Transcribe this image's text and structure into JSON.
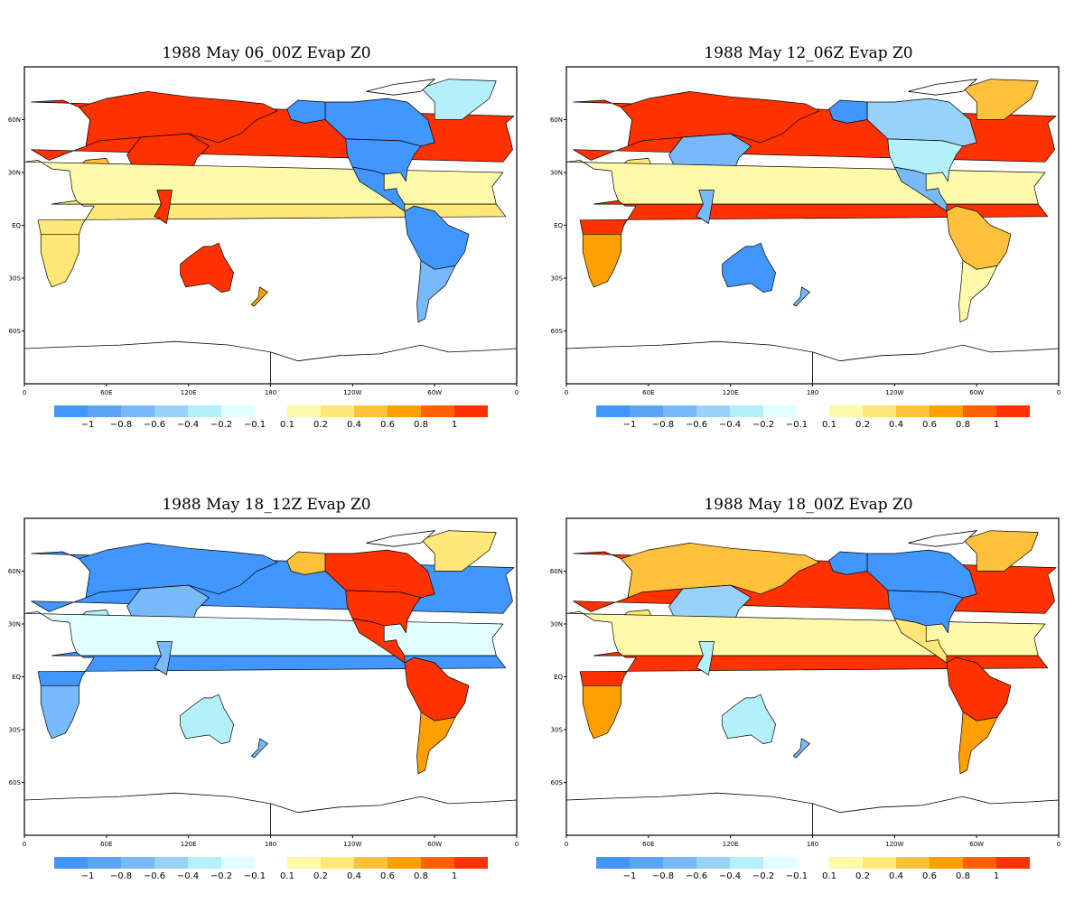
{
  "panels": [
    {
      "title": "1988 May 06_00Z Evap Z0",
      "regions": {
        "europe": "r5",
        "russia": "r5",
        "china": "r5",
        "india": "r5",
        "mideast": "r3",
        "africa_n": "r1",
        "africa_c": "r2",
        "africa_s": "r2",
        "australia": "r5",
        "seasia": "r5",
        "alaska": "b5",
        "canada": "b5",
        "greenland": "b2",
        "usa": "b5",
        "mexico": "b5",
        "samerica_n": "b5",
        "samerica_s": "b4",
        "nz": "r4"
      }
    },
    {
      "title": "1988 May 12_06Z Evap Z0",
      "regions": {
        "europe": "r5",
        "russia": "r5",
        "china": "b4",
        "india": "r5",
        "mideast": "r2",
        "africa_n": "r1",
        "africa_c": "r5",
        "africa_s": "r4",
        "australia": "b5",
        "seasia": "b4",
        "alaska": "b5",
        "canada": "b3",
        "greenland": "r3",
        "usa": "b2",
        "mexico": "b4",
        "samerica_n": "r3",
        "samerica_s": "r1",
        "nz": "b4"
      }
    },
    {
      "title": "1988 May 18_12Z Evap Z0",
      "regions": {
        "europe": "b5",
        "russia": "b5",
        "china": "b4",
        "india": "b4",
        "mideast": "b2",
        "africa_n": "b1",
        "africa_c": "b5",
        "africa_s": "b4",
        "australia": "b2",
        "seasia": "b4",
        "alaska": "r3",
        "canada": "r5",
        "greenland": "r2",
        "usa": "r5",
        "mexico": "r5",
        "samerica_n": "r5",
        "samerica_s": "r4",
        "nz": "b4"
      }
    },
    {
      "title": "1988 May 18_00Z Evap Z0",
      "regions": {
        "europe": "r5",
        "russia": "r3",
        "china": "b3",
        "india": "r3",
        "mideast": "r2",
        "africa_n": "r1",
        "africa_c": "r5",
        "africa_s": "r4",
        "australia": "b2",
        "seasia": "b2",
        "alaska": "b5",
        "canada": "b5",
        "greenland": "r3",
        "usa": "b5",
        "mexico": "r2",
        "samerica_n": "r5",
        "samerica_s": "r4",
        "nz": "b4"
      }
    }
  ],
  "x_ticks": [
    "0",
    "60E",
    "120E",
    "180",
    "120W",
    "60W",
    "0"
  ],
  "y_ticks": [
    "60N",
    "30N",
    "EQ",
    "30S",
    "60S"
  ],
  "colorbar": {
    "negative_labels": [
      "−1",
      "−0.8",
      "−0.6",
      "−0.4",
      "−0.2",
      "−0.1"
    ],
    "positive_labels": [
      "0.1",
      "0.2",
      "0.4",
      "0.6",
      "0.8",
      "1"
    ],
    "negative_colors": [
      "#4196ff",
      "#5aa5f5",
      "#78b9fa",
      "#96d2fa",
      "#b4f0fa",
      "#e1ffff"
    ],
    "positive_colors": [
      "#fffaaa",
      "#ffe878",
      "#ffc03c",
      "#ffa000",
      "#ff6000",
      "#ff3200"
    ]
  },
  "palette": {
    "b1": "#e1ffff",
    "b2": "#b4f0fa",
    "b3": "#96d2fa",
    "b4": "#78b9fa",
    "b5": "#4196ff",
    "r1": "#fffaaa",
    "r2": "#ffe878",
    "r3": "#ffc03c",
    "r4": "#ffa000",
    "r5": "#ff3200"
  }
}
